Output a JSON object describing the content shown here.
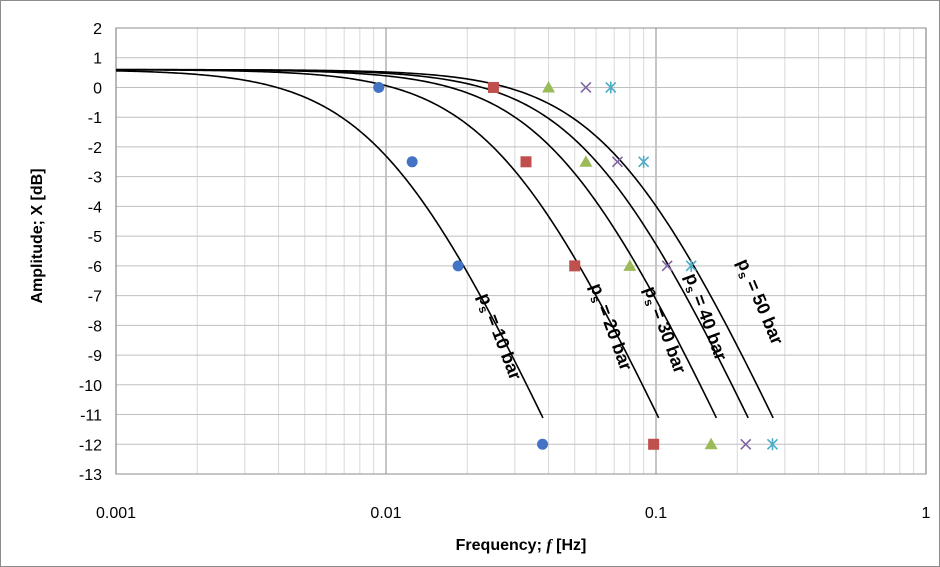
{
  "chart_data": {
    "type": "scatter",
    "x_scale": "log",
    "xlim": [
      0.001,
      1
    ],
    "ylim": [
      -13,
      2
    ],
    "xlabel": "Frequency; f [Hz]",
    "xlabel_prefix": "Frequency; ",
    "xlabel_symbol": "f",
    "xlabel_suffix": " [Hz]",
    "ylabel": "Amplitude; X [dB]",
    "x_tick_labels": [
      "0.001",
      "0.01",
      "0.1",
      "1"
    ],
    "x_ticks": [
      0.001,
      0.01,
      0.1,
      1
    ],
    "y_ticks": [
      2,
      1,
      0,
      -1,
      -2,
      -3,
      -4,
      -5,
      -6,
      -7,
      -8,
      -9,
      -10,
      -11,
      -12,
      -13
    ],
    "y_tick_labels": [
      "2",
      "1",
      "0",
      "-1",
      "-2",
      "-3",
      "-4",
      "-5",
      "-6",
      "-7",
      "-8",
      "-9",
      "-10",
      "-11",
      "-12",
      "-13"
    ],
    "grid": true,
    "series": [
      {
        "label_main": "p",
        "label_sub": "s",
        "label_rest": " = 10 bar",
        "marker": "circle",
        "color": "#4472C4",
        "fc": 0.01025,
        "points": [
          [
            0.0094,
            0
          ],
          [
            0.0125,
            -2.5
          ],
          [
            0.0185,
            -6
          ],
          [
            0.038,
            -12
          ]
        ]
      },
      {
        "label_main": "p",
        "label_sub": "s",
        "label_rest": " = 20 bar",
        "marker": "square",
        "color": "#C0504D",
        "fc": 0.0275,
        "points": [
          [
            0.025,
            0
          ],
          [
            0.033,
            -2.5
          ],
          [
            0.05,
            -6
          ],
          [
            0.098,
            -12
          ]
        ]
      },
      {
        "label_main": "p",
        "label_sub": "s",
        "label_rest": " = 30 bar",
        "marker": "triangle",
        "color": "#9BBB59",
        "fc": 0.045,
        "points": [
          [
            0.04,
            0
          ],
          [
            0.055,
            -2.5
          ],
          [
            0.08,
            -6
          ],
          [
            0.16,
            -12
          ]
        ]
      },
      {
        "label_main": "p",
        "label_sub": "s",
        "label_rest": " = 40 bar",
        "marker": "x",
        "color": "#8064A2",
        "fc": 0.059,
        "points": [
          [
            0.055,
            0
          ],
          [
            0.072,
            -2.5
          ],
          [
            0.11,
            -6
          ],
          [
            0.215,
            -12
          ]
        ]
      },
      {
        "label_main": "p",
        "label_sub": "s",
        "label_rest": " = 50 bar",
        "marker": "star",
        "color": "#4BACC6",
        "fc": 0.073,
        "points": [
          [
            0.068,
            0
          ],
          [
            0.09,
            -2.5
          ],
          [
            0.135,
            -6
          ],
          [
            0.27,
            -12
          ]
        ]
      }
    ]
  }
}
